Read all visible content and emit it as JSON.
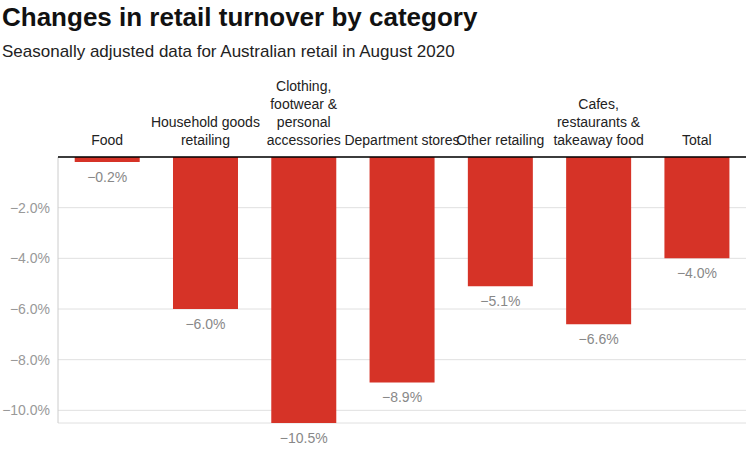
{
  "chart_data": {
    "type": "bar",
    "title": "Changes in retail turnover by category",
    "subtitle": "Seasonally adjusted data for Australian retail in August 2020",
    "categories": [
      "Food",
      "Household goods retailing",
      "Clothing, footwear & personal accessories",
      "Department stores",
      "Other retailing",
      "Cafes, restaurants & takeaway food",
      "Total"
    ],
    "values": [
      -0.2,
      -6.0,
      -10.5,
      -8.9,
      -5.1,
      -6.6,
      -4.0
    ],
    "value_labels": [
      "−0.2%",
      "−6.0%",
      "−10.5%",
      "−8.9%",
      "−5.1%",
      "−6.6%",
      "−4.0%"
    ],
    "color": "#d63327",
    "ylim": [
      -10.5,
      0
    ],
    "yticks": [
      {
        "value": -10,
        "label": "−10.0%"
      },
      {
        "value": -8,
        "label": "−8.0%"
      },
      {
        "value": -6,
        "label": "−6.0%"
      },
      {
        "value": -4,
        "label": "−4.0%"
      },
      {
        "value": -2,
        "label": "−2.0%"
      }
    ],
    "grid": true,
    "data_labels": true
  }
}
